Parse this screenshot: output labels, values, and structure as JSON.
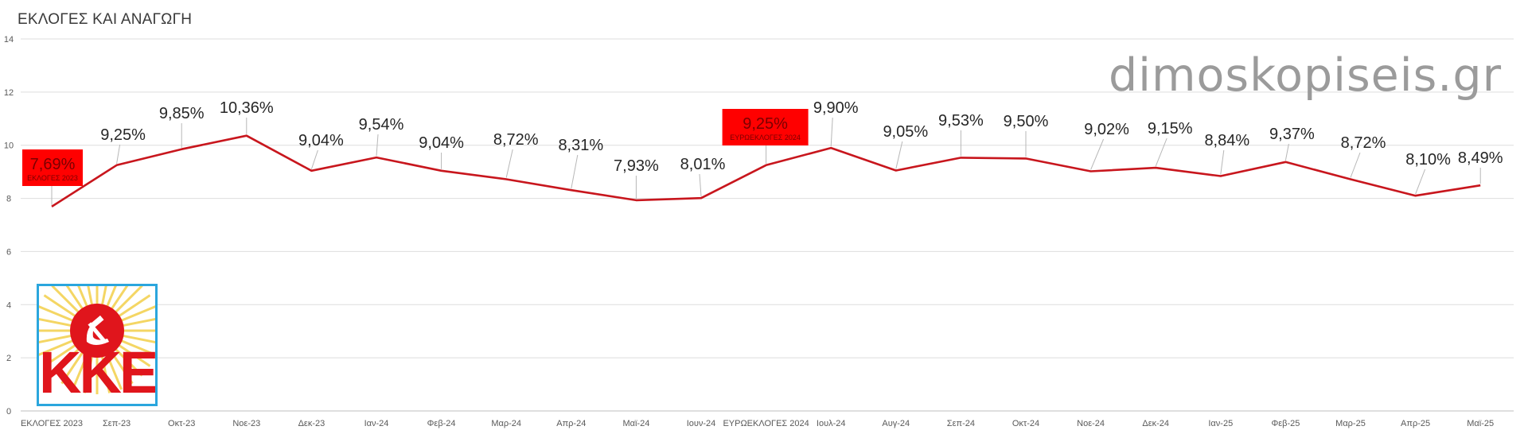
{
  "title": "ΕΚΛΟΓΕΣ ΚΑΙ ΑΝΑΓΩΓΗ",
  "watermark": "dimoskopiseis.gr",
  "logo": {
    "name": "kke-logo",
    "text": "ΚΚΕ"
  },
  "colors": {
    "line": "#c8161d",
    "highlight_box": "#ff0000",
    "grid": "#d9d9d9",
    "logo_border": "#2ba6dd"
  },
  "chart_data": {
    "type": "line",
    "title": "ΕΚΛΟΓΕΣ ΚΑΙ ΑΝΑΓΩΓΗ",
    "categories": [
      "ΕΚΛΟΓΕΣ 2023",
      "Σεπ-23",
      "Οκτ-23",
      "Νοε-23",
      "Δεκ-23",
      "Ιαν-24",
      "Φεβ-24",
      "Μαρ-24",
      "Απρ-24",
      "Μαϊ-24",
      "Ιουν-24",
      "ΕΥΡΩΕΚΛΟΓΕΣ 2024",
      "Ιουλ-24",
      "Αυγ-24",
      "Σεπ-24",
      "Οκτ-24",
      "Νοε-24",
      "Δεκ-24",
      "Ιαν-25",
      "Φεβ-25",
      "Μαρ-25",
      "Απρ-25",
      "Μαϊ-25"
    ],
    "series": [
      {
        "values": [
          7.69,
          9.25,
          9.85,
          10.36,
          9.04,
          9.54,
          9.04,
          8.72,
          8.31,
          7.93,
          8.01,
          9.25,
          9.9,
          9.05,
          9.53,
          9.5,
          9.02,
          9.15,
          8.84,
          9.37,
          8.72,
          8.1,
          8.49
        ],
        "labels": [
          "7,69%",
          "9,25%",
          "9,85%",
          "10,36%",
          "9,04%",
          "9,54%",
          "9,04%",
          "8,72%",
          "8,31%",
          "7,93%",
          "8,01%",
          "9,25%",
          "9,90%",
          "9,05%",
          "9,53%",
          "9,50%",
          "9,02%",
          "9,15%",
          "8,84%",
          "9,37%",
          "8,72%",
          "8,10%",
          "8,49%"
        ]
      }
    ],
    "highlighted": [
      {
        "index": 0,
        "label": "7,69%",
        "sublabel": "ΕΚΛΟΓΕΣ 2023"
      },
      {
        "index": 11,
        "label": "9,25%",
        "sublabel": "ΕΥΡΩΕΚΛΟΓΕΣ 2024"
      }
    ],
    "yticks": [
      "0",
      "2",
      "4",
      "6",
      "8",
      "10",
      "12",
      "14"
    ],
    "ylim": [
      0,
      14
    ],
    "grid": true,
    "legend": "none"
  }
}
